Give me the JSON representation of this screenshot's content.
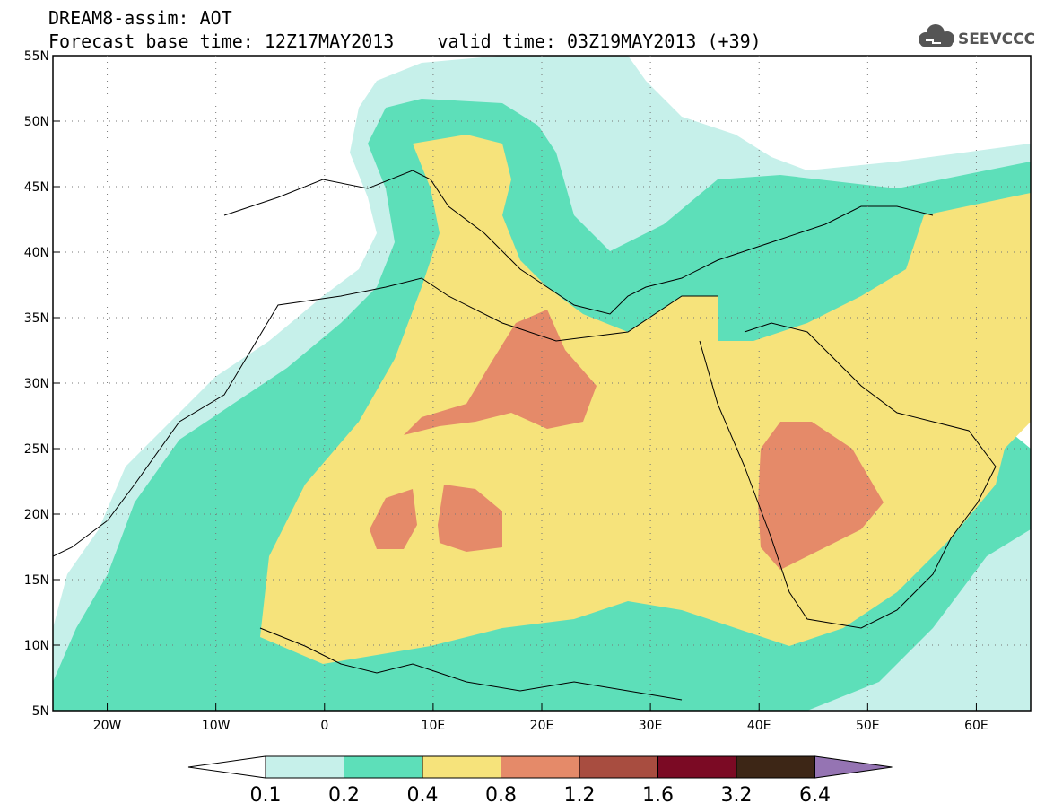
{
  "header": {
    "title": "DREAM8-assim: AOT",
    "subtitle": "Forecast base time: 12Z17MAY2013    valid time: 03Z19MAY2013 (+39)",
    "logo_text": "SEEVCCC"
  },
  "map": {
    "projection": "lat-lon",
    "lon_range": [
      -25,
      65
    ],
    "lat_range": [
      5,
      55
    ],
    "lat_labels": [
      "55N",
      "50N",
      "45N",
      "40N",
      "35N",
      "30N",
      "25N",
      "20N",
      "15N",
      "10N",
      "5N"
    ],
    "lon_labels": [
      "20W",
      "10W",
      "0",
      "10E",
      "20E",
      "30E",
      "40E",
      "50E",
      "60E"
    ],
    "grid": "dotted, 5 degrees",
    "colors": {
      "c01": "#c6f0ea",
      "c02": "#5ddfb9",
      "c04": "#f6e37b",
      "c08": "#e58a69",
      "c12": "#a84d40",
      "c16": "#7b0a24",
      "c32": "#3d2616",
      "c64": "#9574b3"
    }
  },
  "colorbar": {
    "ticks": [
      "0.1",
      "0.2",
      "0.4",
      "0.8",
      "1.2",
      "1.6",
      "3.2",
      "6.4"
    ],
    "colors": [
      "#c6f0ea",
      "#5ddfb9",
      "#f6e37b",
      "#e58a69",
      "#a84d40",
      "#7b0a24",
      "#3d2616"
    ],
    "low_end_color": "#ffffff",
    "high_end_color": "#9574b3"
  }
}
